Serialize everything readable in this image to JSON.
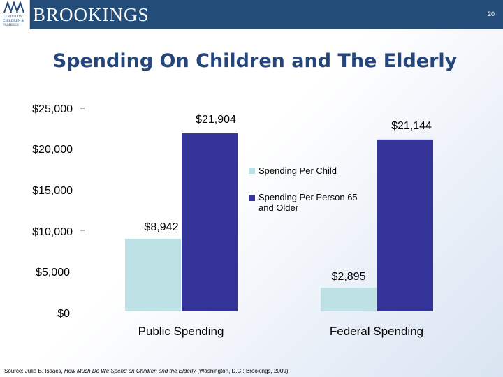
{
  "header": {
    "brand": "BROOKINGS",
    "logo_lines": [
      "CENTER ON",
      "CHILDREN &",
      "FAMILIES"
    ],
    "page_number": "20",
    "color": "#234d78"
  },
  "slide": {
    "title": "Spending On Children and The Elderly"
  },
  "source": {
    "prefix": "Source: Julia B. Isaacs, ",
    "title": "How Much Do We Spend on Children and the Elderly",
    "suffix": " (Washington, D.C.: Brookings, 2009)."
  },
  "chart_data": {
    "type": "bar",
    "categories": [
      "Public Spending",
      "Federal Spending"
    ],
    "series": [
      {
        "name": "Spending Per Child",
        "values": [
          8942,
          2895
        ],
        "labels": [
          "$8,942",
          "$2,895"
        ],
        "color": "#bde1e4"
      },
      {
        "name": "Spending Per Person 65 and Older",
        "values": [
          21904,
          21144
        ],
        "labels": [
          "$21,904",
          "$21,144"
        ],
        "color": "#33339a"
      }
    ],
    "y_ticks": [
      {
        "value": 25000,
        "label": "$25,000"
      },
      {
        "value": 20000,
        "label": "$20,000"
      },
      {
        "value": 15000,
        "label": "$15,000"
      },
      {
        "value": 10000,
        "label": "$10,000"
      },
      {
        "value": 5000,
        "label": "$5,000"
      },
      {
        "value": 0,
        "label": "$0"
      }
    ],
    "ylim": [
      0,
      25000
    ],
    "grid": false,
    "legend_position": "center",
    "title": "",
    "xlabel": "",
    "ylabel": ""
  }
}
